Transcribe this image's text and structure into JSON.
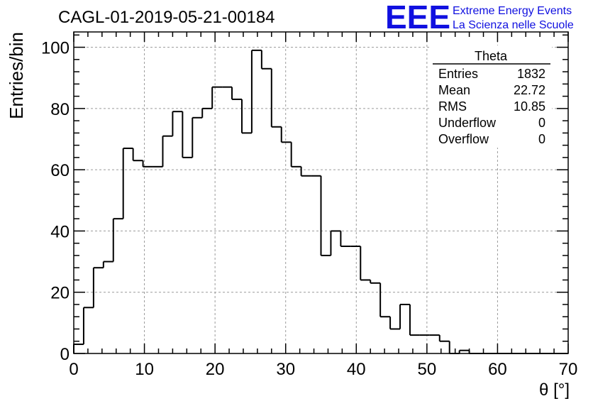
{
  "title": "CAGL-01-2019-05-21-00184",
  "logo": {
    "mark": "EEE",
    "line1": "Extreme Energy Events",
    "line2": "La Scienza nelle Scuole",
    "color": "#1010e0"
  },
  "stats": {
    "name": "Theta",
    "rows": [
      {
        "label": "Entries",
        "value": "1832"
      },
      {
        "label": "Mean",
        "value": "22.72"
      },
      {
        "label": "RMS",
        "value": "10.85"
      },
      {
        "label": "Underflow",
        "value": "0"
      },
      {
        "label": "Overflow",
        "value": "0"
      }
    ]
  },
  "chart_data": {
    "type": "bar",
    "histogram": true,
    "xlabel": "θ [°]",
    "ylabel": "Entries/bin",
    "xlim": [
      0,
      70
    ],
    "ylim": [
      0,
      105
    ],
    "bin_width": 1.4,
    "x_ticks": [
      0,
      10,
      20,
      30,
      40,
      50,
      60,
      70
    ],
    "y_ticks": [
      0,
      20,
      40,
      60,
      80,
      100
    ],
    "grid": true,
    "values": [
      3,
      15,
      28,
      30,
      44,
      67,
      63,
      61,
      61,
      71,
      79,
      64,
      77,
      80,
      87,
      87,
      83,
      72,
      99,
      93,
      74,
      69,
      61,
      58,
      58,
      32,
      40,
      35,
      35,
      24,
      23,
      12,
      8,
      16,
      6,
      6,
      6,
      4,
      0,
      1,
      0,
      0,
      0,
      0,
      0,
      0,
      0,
      0,
      0,
      0
    ]
  }
}
